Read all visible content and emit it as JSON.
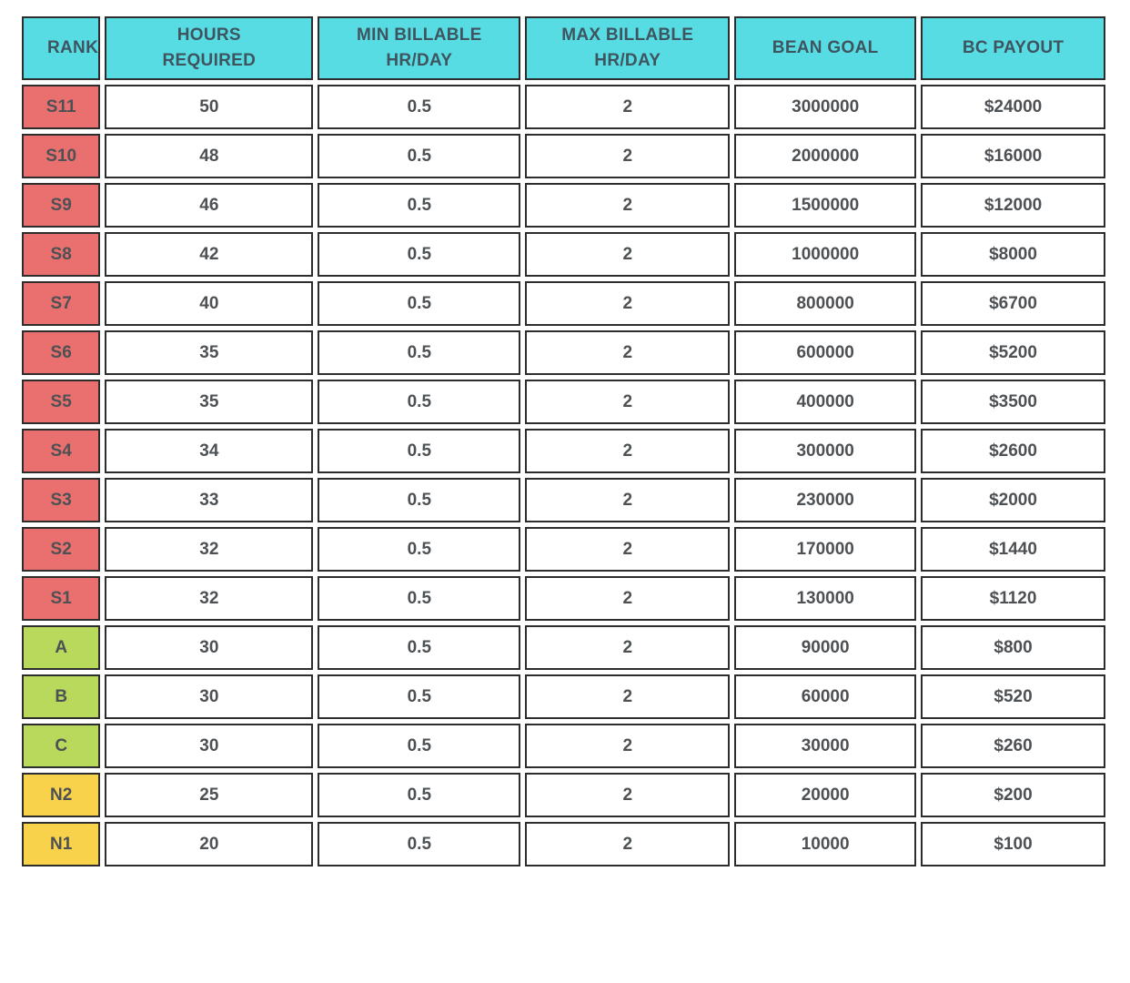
{
  "colors": {
    "header-bg": "#58dce4",
    "header-text": "#3e5560",
    "tier-s": "#ea7070",
    "tier-a": "#b8d95c",
    "tier-n": "#f8d24b",
    "cell-text": "#4d5154",
    "border": "#2d2d2d",
    "page-bg": "#ffffff"
  },
  "table": {
    "columns": [
      "RANK",
      "HOURS REQUIRED",
      "MIN BILLABLE HR/DAY",
      "MAX BILLABLE HR/DAY",
      "BEAN GOAL",
      "BC PAYOUT"
    ],
    "rows": [
      {
        "tier": "s",
        "rank": "S11",
        "hours": "50",
        "min_billable": "0.5",
        "max_billable": "2",
        "bean_goal": "3000000",
        "bc_payout": "$24000"
      },
      {
        "tier": "s",
        "rank": "S10",
        "hours": "48",
        "min_billable": "0.5",
        "max_billable": "2",
        "bean_goal": "2000000",
        "bc_payout": "$16000"
      },
      {
        "tier": "s",
        "rank": "S9",
        "hours": "46",
        "min_billable": "0.5",
        "max_billable": "2",
        "bean_goal": "1500000",
        "bc_payout": "$12000"
      },
      {
        "tier": "s",
        "rank": "S8",
        "hours": "42",
        "min_billable": "0.5",
        "max_billable": "2",
        "bean_goal": "1000000",
        "bc_payout": "$8000"
      },
      {
        "tier": "s",
        "rank": "S7",
        "hours": "40",
        "min_billable": "0.5",
        "max_billable": "2",
        "bean_goal": "800000",
        "bc_payout": "$6700"
      },
      {
        "tier": "s",
        "rank": "S6",
        "hours": "35",
        "min_billable": "0.5",
        "max_billable": "2",
        "bean_goal": "600000",
        "bc_payout": "$5200"
      },
      {
        "tier": "s",
        "rank": "S5",
        "hours": "35",
        "min_billable": "0.5",
        "max_billable": "2",
        "bean_goal": "400000",
        "bc_payout": "$3500"
      },
      {
        "tier": "s",
        "rank": "S4",
        "hours": "34",
        "min_billable": "0.5",
        "max_billable": "2",
        "bean_goal": "300000",
        "bc_payout": "$2600"
      },
      {
        "tier": "s",
        "rank": "S3",
        "hours": "33",
        "min_billable": "0.5",
        "max_billable": "2",
        "bean_goal": "230000",
        "bc_payout": "$2000"
      },
      {
        "tier": "s",
        "rank": "S2",
        "hours": "32",
        "min_billable": "0.5",
        "max_billable": "2",
        "bean_goal": "170000",
        "bc_payout": "$1440"
      },
      {
        "tier": "s",
        "rank": "S1",
        "hours": "32",
        "min_billable": "0.5",
        "max_billable": "2",
        "bean_goal": "130000",
        "bc_payout": "$1120"
      },
      {
        "tier": "a",
        "rank": "A",
        "hours": "30",
        "min_billable": "0.5",
        "max_billable": "2",
        "bean_goal": "90000",
        "bc_payout": "$800"
      },
      {
        "tier": "a",
        "rank": "B",
        "hours": "30",
        "min_billable": "0.5",
        "max_billable": "2",
        "bean_goal": "60000",
        "bc_payout": "$520"
      },
      {
        "tier": "a",
        "rank": "C",
        "hours": "30",
        "min_billable": "0.5",
        "max_billable": "2",
        "bean_goal": "30000",
        "bc_payout": "$260"
      },
      {
        "tier": "n",
        "rank": "N2",
        "hours": "25",
        "min_billable": "0.5",
        "max_billable": "2",
        "bean_goal": "20000",
        "bc_payout": "$200"
      },
      {
        "tier": "n",
        "rank": "N1",
        "hours": "20",
        "min_billable": "0.5",
        "max_billable": "2",
        "bean_goal": "10000",
        "bc_payout": "$100"
      }
    ]
  }
}
